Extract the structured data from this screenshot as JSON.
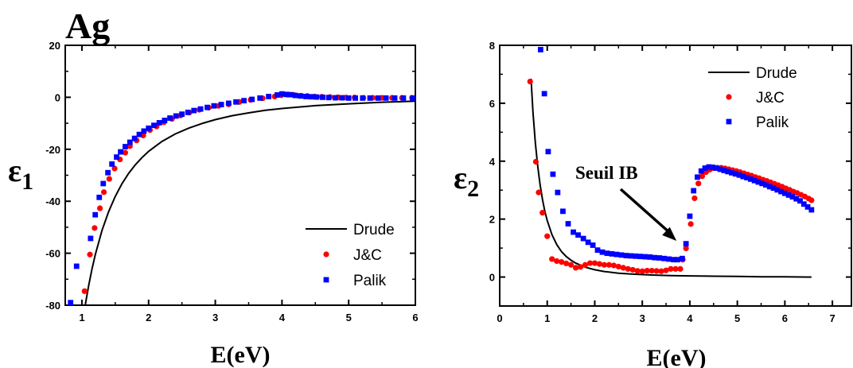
{
  "figure_title": "Ag",
  "chart_data": [
    {
      "type": "scatter",
      "title": "",
      "xlabel": "E(eV)",
      "ylabel": "ε",
      "ylabel_sub": "1",
      "xlim": [
        0.75,
        6
      ],
      "ylim": [
        -80,
        20
      ],
      "xticks": [
        1,
        2,
        3,
        4,
        5,
        6
      ],
      "yticks": [
        20,
        0,
        -20,
        -40,
        -60,
        -80
      ],
      "legend_position": "bottom-right",
      "grid": false,
      "series": [
        {
          "name": "Drude",
          "style": "line",
          "color": "#000000",
          "x": [
            1.05,
            1.1,
            1.15,
            1.2,
            1.3,
            1.4,
            1.5,
            1.6,
            1.7,
            1.8,
            1.9,
            2.0,
            2.2,
            2.4,
            2.6,
            2.8,
            3.0,
            3.25,
            3.5,
            3.75,
            4.0,
            4.5,
            5.0,
            5.5,
            6.0
          ],
          "y": [
            -80,
            -72.7,
            -66.2,
            -60.6,
            -51.3,
            -44.0,
            -38.1,
            -33.3,
            -29.3,
            -26.0,
            -23.2,
            -20.8,
            -17.0,
            -14.1,
            -11.9,
            -10.1,
            -8.6,
            -7.1,
            -6.0,
            -5.0,
            -4.3,
            -3.2,
            -2.5,
            -1.9,
            -1.5
          ]
        },
        {
          "name": "J&C",
          "style": "circle",
          "color": "#ff0000",
          "x": [
            1.04,
            1.12,
            1.19,
            1.27,
            1.33,
            1.41,
            1.49,
            1.57,
            1.65,
            1.72,
            1.82,
            1.92,
            2.02,
            2.12,
            2.23,
            2.35,
            2.48,
            2.61,
            2.76,
            2.9,
            3.05,
            3.2,
            3.36,
            3.53,
            3.71,
            3.89,
            3.99,
            4.08,
            4.18,
            4.28,
            4.38,
            4.49,
            4.6,
            4.72,
            4.84,
            4.96,
            5.09,
            5.22,
            5.36,
            5.5,
            5.65,
            5.8,
            5.95
          ],
          "y": [
            -74.6,
            -60.5,
            -50.3,
            -42.7,
            -36.5,
            -31.4,
            -27.4,
            -23.9,
            -21.3,
            -18.8,
            -16.6,
            -14.7,
            -12.6,
            -11.2,
            -9.6,
            -8.3,
            -7.0,
            -5.9,
            -4.8,
            -4.0,
            -3.3,
            -2.7,
            -1.8,
            -1.0,
            -0.4,
            0.3,
            0.8,
            1.0,
            0.9,
            0.6,
            0.5,
            0.3,
            0.2,
            0.1,
            0.0,
            -0.1,
            -0.1,
            -0.2,
            -0.2,
            -0.2,
            -0.2,
            -0.2,
            -0.2
          ]
        },
        {
          "name": "Palik",
          "style": "square",
          "color": "#0000ff",
          "x": [
            0.83,
            0.92,
            1.13,
            1.2,
            1.26,
            1.32,
            1.39,
            1.45,
            1.52,
            1.58,
            1.65,
            1.72,
            1.79,
            1.86,
            1.93,
            2.0,
            2.08,
            2.16,
            2.24,
            2.32,
            2.41,
            2.5,
            2.59,
            2.68,
            2.78,
            2.88,
            2.98,
            3.09,
            3.2,
            3.31,
            3.43,
            3.55,
            3.67,
            3.8,
            3.93,
            4.0,
            4.07,
            4.13,
            4.2,
            4.28,
            4.36,
            4.44,
            4.52,
            4.61,
            4.7,
            4.8,
            4.9,
            5.0,
            5.1,
            5.21,
            5.32,
            5.44,
            5.56,
            5.69,
            5.82,
            5.96
          ],
          "y": [
            -79,
            -65,
            -54.3,
            -45.2,
            -38.5,
            -33.2,
            -29.0,
            -25.7,
            -23.0,
            -21.0,
            -19.0,
            -17.3,
            -15.8,
            -14.3,
            -13.0,
            -11.9,
            -10.8,
            -9.8,
            -8.9,
            -8.0,
            -7.2,
            -6.5,
            -5.8,
            -5.1,
            -4.5,
            -3.9,
            -3.3,
            -2.8,
            -2.3,
            -1.8,
            -1.3,
            -0.8,
            -0.3,
            0.3,
            0.9,
            1.3,
            1.1,
            1.0,
            0.7,
            0.5,
            0.3,
            0.2,
            0.1,
            0.0,
            -0.1,
            -0.2,
            -0.2,
            -0.3,
            -0.3,
            -0.3,
            -0.3,
            -0.3,
            -0.3,
            -0.3,
            -0.3,
            -0.3
          ]
        }
      ]
    },
    {
      "type": "scatter",
      "title": "",
      "xlabel": "E(eV)",
      "ylabel": "ε",
      "ylabel_sub": "2",
      "xlim": [
        0,
        7.4
      ],
      "ylim": [
        -1,
        8
      ],
      "xticks": [
        0,
        1,
        2,
        3,
        4,
        5,
        6,
        7
      ],
      "yticks": [
        0,
        2,
        4,
        6,
        8
      ],
      "legend_position": "top-right",
      "grid": false,
      "annotation": {
        "text": "Seuil IB",
        "points_to": [
          3.72,
          1.25
        ]
      },
      "series": [
        {
          "name": "Drude",
          "style": "line",
          "color": "#000000",
          "x": [
            0.66,
            0.7,
            0.75,
            0.8,
            0.85,
            0.9,
            0.95,
            1.0,
            1.1,
            1.2,
            1.3,
            1.4,
            1.5,
            1.6,
            1.8,
            2.0,
            2.2,
            2.5,
            2.8,
            3.2,
            3.6,
            4.0,
            4.5,
            5.0,
            5.5,
            6.0,
            6.56
          ],
          "y": [
            6.85,
            5.69,
            4.63,
            3.82,
            3.18,
            2.67,
            2.27,
            1.95,
            1.46,
            1.12,
            0.88,
            0.71,
            0.58,
            0.48,
            0.34,
            0.25,
            0.19,
            0.13,
            0.1,
            0.07,
            0.05,
            0.04,
            0.03,
            0.02,
            0.01,
            0.01,
            0.0
          ]
        },
        {
          "name": "J&C",
          "style": "circle",
          "color": "#ff0000",
          "x": [
            0.64,
            0.76,
            0.82,
            0.9,
            1.0,
            1.1,
            1.2,
            1.3,
            1.4,
            1.5,
            1.6,
            1.7,
            1.8,
            1.9,
            2.0,
            2.1,
            2.2,
            2.3,
            2.4,
            2.5,
            2.6,
            2.7,
            2.8,
            2.9,
            3.0,
            3.1,
            3.2,
            3.3,
            3.4,
            3.5,
            3.6,
            3.7,
            3.8,
            3.85,
            3.92,
            4.02,
            4.1,
            4.18,
            4.26,
            4.34,
            4.42,
            4.5,
            4.58,
            4.66,
            4.74,
            4.82,
            4.9,
            4.98,
            5.06,
            5.14,
            5.22,
            5.3,
            5.38,
            5.46,
            5.54,
            5.62,
            5.7,
            5.78,
            5.86,
            5.94,
            6.02,
            6.1,
            6.18,
            6.26,
            6.34,
            6.42,
            6.5,
            6.56
          ],
          "y": [
            6.75,
            3.98,
            2.92,
            2.22,
            1.41,
            0.62,
            0.55,
            0.52,
            0.47,
            0.42,
            0.32,
            0.35,
            0.42,
            0.48,
            0.48,
            0.45,
            0.42,
            0.42,
            0.4,
            0.36,
            0.32,
            0.28,
            0.25,
            0.21,
            0.2,
            0.22,
            0.22,
            0.21,
            0.2,
            0.23,
            0.28,
            0.28,
            0.28,
            0.6,
            0.99,
            1.83,
            2.72,
            3.23,
            3.48,
            3.62,
            3.71,
            3.76,
            3.77,
            3.77,
            3.75,
            3.72,
            3.69,
            3.66,
            3.62,
            3.58,
            3.54,
            3.5,
            3.45,
            3.41,
            3.36,
            3.32,
            3.27,
            3.22,
            3.17,
            3.12,
            3.06,
            3.01,
            2.95,
            2.9,
            2.84,
            2.78,
            2.71,
            2.65
          ]
        },
        {
          "name": "Palik",
          "style": "square",
          "color": "#0000ff",
          "x": [
            0.86,
            0.94,
            1.02,
            1.12,
            1.22,
            1.33,
            1.44,
            1.55,
            1.65,
            1.76,
            1.86,
            1.96,
            2.06,
            2.16,
            2.26,
            2.36,
            2.46,
            2.56,
            2.66,
            2.76,
            2.86,
            2.96,
            3.06,
            3.16,
            3.26,
            3.36,
            3.46,
            3.56,
            3.66,
            3.74,
            3.84,
            3.92,
            4.0,
            4.08,
            4.16,
            4.24,
            4.32,
            4.4,
            4.48,
            4.56,
            4.64,
            4.72,
            4.8,
            4.88,
            4.96,
            5.04,
            5.12,
            5.2,
            5.28,
            5.36,
            5.44,
            5.52,
            5.6,
            5.68,
            5.76,
            5.84,
            5.92,
            6.0,
            6.08,
            6.16,
            6.24,
            6.32,
            6.4,
            6.48,
            6.56
          ],
          "y": [
            7.85,
            6.33,
            4.33,
            3.55,
            2.92,
            2.27,
            1.84,
            1.55,
            1.45,
            1.33,
            1.2,
            1.1,
            0.93,
            0.86,
            0.82,
            0.8,
            0.78,
            0.76,
            0.74,
            0.73,
            0.72,
            0.71,
            0.7,
            0.69,
            0.67,
            0.66,
            0.64,
            0.62,
            0.6,
            0.6,
            0.64,
            1.15,
            2.1,
            2.98,
            3.45,
            3.66,
            3.76,
            3.8,
            3.79,
            3.76,
            3.72,
            3.68,
            3.64,
            3.6,
            3.56,
            3.52,
            3.47,
            3.43,
            3.38,
            3.33,
            3.28,
            3.23,
            3.18,
            3.12,
            3.07,
            3.01,
            2.95,
            2.89,
            2.83,
            2.77,
            2.7,
            2.63,
            2.52,
            2.42,
            2.32
          ]
        }
      ]
    }
  ]
}
